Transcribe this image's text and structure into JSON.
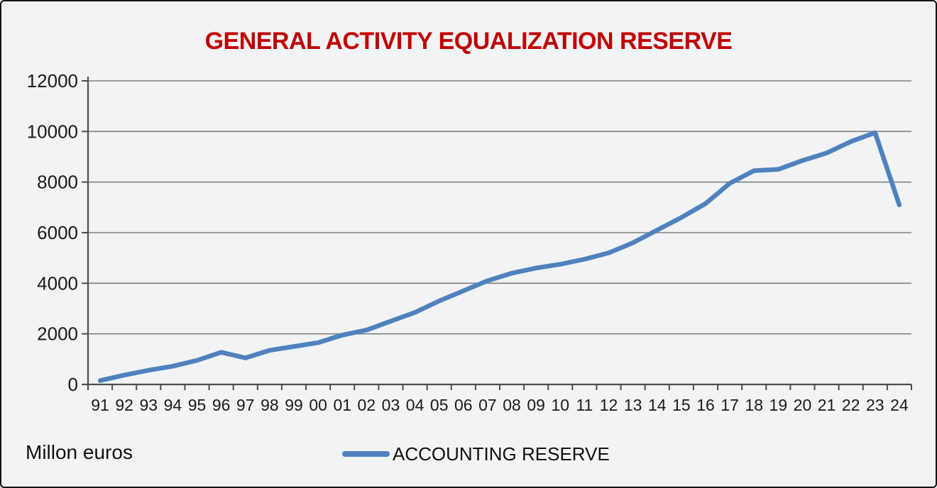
{
  "chart": {
    "title": "GENERAL ACTIVITY EQUALIZATION RESERVE",
    "title_color": "#C00000",
    "units_label": "Millon euros",
    "legend": [
      {
        "label": "ACCOUNTING RESERVE",
        "color": "#4F81BD"
      }
    ]
  },
  "chart_data": {
    "type": "line",
    "title": "GENERAL ACTIVITY EQUALIZATION RESERVE",
    "categories": [
      "91",
      "92",
      "93",
      "94",
      "95",
      "96",
      "97",
      "98",
      "99",
      "00",
      "01",
      "02",
      "03",
      "04",
      "05",
      "06",
      "07",
      "08",
      "09",
      "10",
      "11",
      "12",
      "13",
      "14",
      "15",
      "16",
      "17",
      "18",
      "19",
      "20",
      "21",
      "22",
      "23",
      "24"
    ],
    "series": [
      {
        "name": "ACCOUNTING RESERVE",
        "color": "#4F81BD",
        "values": [
          150,
          370,
          560,
          720,
          950,
          1270,
          1050,
          1350,
          1500,
          1650,
          1950,
          2150,
          2500,
          2850,
          3300,
          3700,
          4100,
          4400,
          4600,
          4750,
          4950,
          5200,
          5600,
          6100,
          6600,
          7150,
          7950,
          8450,
          8500,
          8850,
          9150,
          9600,
          9950,
          7100
        ]
      }
    ],
    "xlabel": "",
    "ylabel": "Millon euros",
    "ylim": [
      0,
      12000
    ],
    "ytick_step": 2000,
    "yticks": [
      0,
      2000,
      4000,
      6000,
      8000,
      10000,
      12000
    ],
    "grid": true,
    "legend_position": "bottom",
    "colors": {
      "gridline": "#7f7f7f",
      "axis": "#4d4d4d",
      "label_text": "#1a1a1a",
      "background": "#F2F3F5"
    }
  }
}
